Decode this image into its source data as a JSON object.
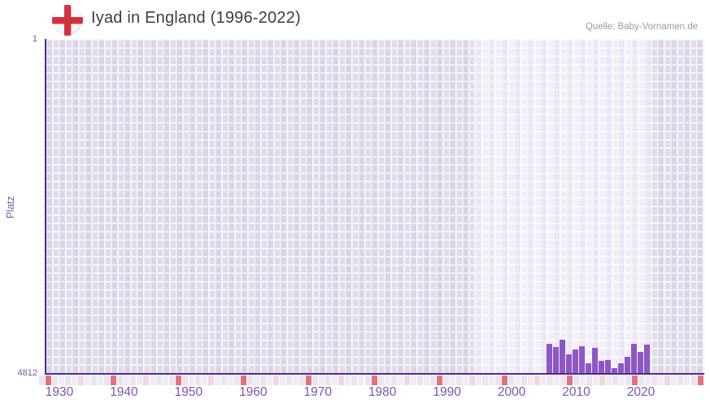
{
  "header": {
    "title": "Iyad in England (1996-2022)",
    "flag_icon": "england-flag",
    "source": "Quelle: Baby-Vornamen.de"
  },
  "chart_data": {
    "type": "bar",
    "title": "Iyad in England (1996-2022)",
    "ylabel": "Platz",
    "yaxis": {
      "top_tick": "1",
      "bottom_tick": "4812",
      "min": 1,
      "max": 4812,
      "inverted": true
    },
    "xaxis": {
      "tick_labels": [
        "1930",
        "1940",
        "1950",
        "1960",
        "1970",
        "1980",
        "1990",
        "2000",
        "2010",
        "2020"
      ],
      "range_years": [
        1926,
        2028
      ],
      "grid": true
    },
    "data_period": {
      "from": 1996,
      "to": 2022
    },
    "legend": "none",
    "series": [
      {
        "name": "Platz",
        "points": [
          {
            "year": 2007,
            "rank": 4391
          },
          {
            "year": 2008,
            "rank": 4437
          },
          {
            "year": 2009,
            "rank": 4332
          },
          {
            "year": 2010,
            "rank": 4543
          },
          {
            "year": 2011,
            "rank": 4473
          },
          {
            "year": 2012,
            "rank": 4426
          },
          {
            "year": 2013,
            "rank": 4672
          },
          {
            "year": 2014,
            "rank": 4449
          },
          {
            "year": 2015,
            "rank": 4636
          },
          {
            "year": 2016,
            "rank": 4625
          },
          {
            "year": 2017,
            "rank": 4742
          },
          {
            "year": 2018,
            "rank": 4672
          },
          {
            "year": 2019,
            "rank": 4578
          },
          {
            "year": 2020,
            "rank": 4391
          },
          {
            "year": 2021,
            "rank": 4508
          },
          {
            "year": 2022,
            "rank": 4402
          }
        ]
      }
    ],
    "colors": {
      "bar": "#8d58c4",
      "axis_line": "#4b2c8f",
      "tick_text": "#7d55ae",
      "plot_bg_outside_period": "#e1dbeb",
      "plot_bg_inside_period": "#f2eef9",
      "timeline_marker_red": "#e0737c",
      "timeline_marker_pink": "#f3d6de",
      "timeline_cell_light_a": "#f0ebf6",
      "timeline_cell_light_b": "#eae4f1",
      "title_text": "#3d3d3d",
      "source_text": "#9b9b9b",
      "flag_cross_red": "#d2323c"
    }
  }
}
